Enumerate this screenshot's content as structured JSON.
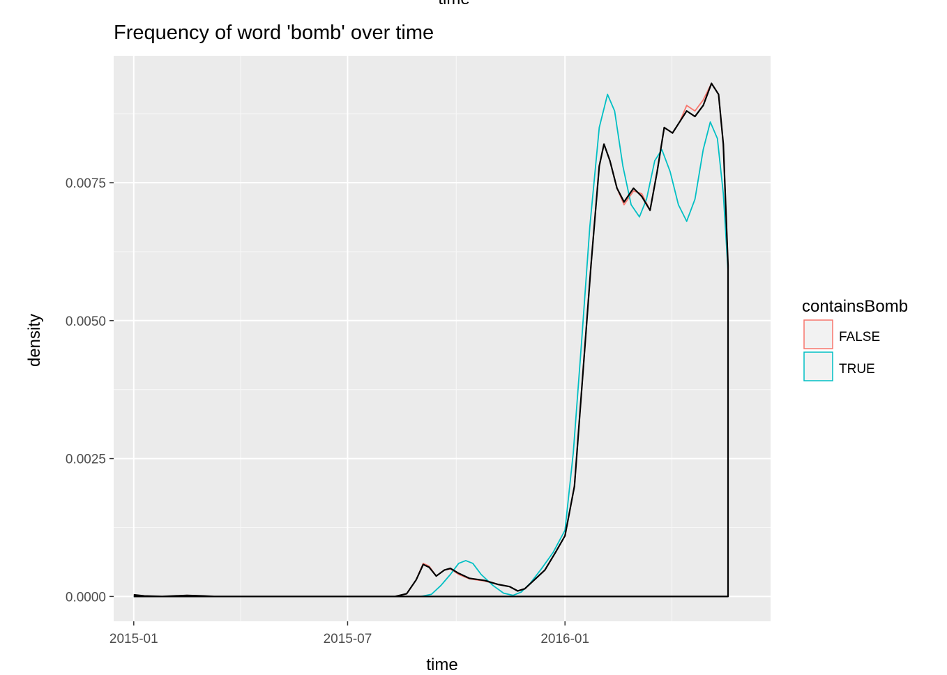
{
  "chart_data": {
    "type": "line",
    "top_title": "time",
    "title": "Frequency of word 'bomb' over time",
    "xlabel": "time",
    "ylabel": "density",
    "x_ticks": [
      "2015-01",
      "2015-07",
      "2016-01"
    ],
    "y_ticks": [
      "0.0000",
      "0.0025",
      "0.0050",
      "0.0075"
    ],
    "y_tick_values": [
      0,
      0.0025,
      0.005,
      0.0075
    ],
    "x_tick_values": [
      "2015-01-01",
      "2015-07-01",
      "2016-01-01"
    ],
    "xlim": [
      "2014-12-15",
      "2016-06-23"
    ],
    "ylim": [
      -0.00045,
      0.0098
    ],
    "grid": true,
    "legend": {
      "title": "containsBomb",
      "placement": "right",
      "entries": [
        {
          "label": "FALSE",
          "color": "#F8766D"
        },
        {
          "label": "TRUE",
          "color": "#00BFC4"
        }
      ]
    },
    "series": [
      {
        "name": "FALSE",
        "color": "#F8766D",
        "points": [
          [
            "2015-01-01",
            3e-05
          ],
          [
            "2015-01-10",
            1e-05
          ],
          [
            "2015-01-25",
            0.0
          ],
          [
            "2015-02-15",
            2e-05
          ],
          [
            "2015-03-01",
            1e-05
          ],
          [
            "2015-03-10",
            0.0
          ],
          [
            "2015-08-10",
            0.0
          ],
          [
            "2015-08-20",
            5e-05
          ],
          [
            "2015-08-28",
            0.0003
          ],
          [
            "2015-09-03",
            0.0006
          ],
          [
            "2015-09-08",
            0.00055
          ],
          [
            "2015-09-14",
            0.00037
          ],
          [
            "2015-09-21",
            0.00048
          ],
          [
            "2015-09-26",
            0.0005
          ],
          [
            "2015-10-03",
            0.0004
          ],
          [
            "2015-10-12",
            0.00032
          ],
          [
            "2015-10-25",
            0.00028
          ],
          [
            "2015-11-05",
            0.00022
          ],
          [
            "2015-11-15",
            0.00018
          ],
          [
            "2015-11-22",
            0.0001
          ],
          [
            "2015-11-28",
            0.00014
          ],
          [
            "2015-12-06",
            0.0003
          ],
          [
            "2015-12-15",
            0.00048
          ],
          [
            "2015-12-24",
            0.0008
          ],
          [
            "2016-01-01",
            0.0011
          ],
          [
            "2016-01-09",
            0.002
          ],
          [
            "2016-01-16",
            0.004
          ],
          [
            "2016-01-23",
            0.006
          ],
          [
            "2016-01-30",
            0.0078
          ],
          [
            "2016-02-03",
            0.0082
          ],
          [
            "2016-02-08",
            0.0079
          ],
          [
            "2016-02-14",
            0.0074
          ],
          [
            "2016-02-20",
            0.0071
          ],
          [
            "2016-02-28",
            0.00735
          ],
          [
            "2016-03-06",
            0.0073
          ],
          [
            "2016-03-13",
            0.007
          ],
          [
            "2016-03-19",
            0.0077
          ],
          [
            "2016-03-25",
            0.0085
          ],
          [
            "2016-04-01",
            0.0084
          ],
          [
            "2016-04-07",
            0.0086
          ],
          [
            "2016-04-13",
            0.0089
          ],
          [
            "2016-04-20",
            0.0088
          ],
          [
            "2016-04-27",
            0.009
          ],
          [
            "2016-05-04",
            0.0093
          ],
          [
            "2016-05-10",
            0.0091
          ],
          [
            "2016-05-14",
            0.0082
          ],
          [
            "2016-05-18",
            0.006
          ]
        ]
      },
      {
        "name": "TRUE",
        "color": "#00BFC4",
        "points": [
          [
            "2015-01-01",
            0.0
          ],
          [
            "2015-09-01",
            0.0
          ],
          [
            "2015-09-10",
            4e-05
          ],
          [
            "2015-09-18",
            0.0002
          ],
          [
            "2015-09-26",
            0.0004
          ],
          [
            "2015-10-03",
            0.0006
          ],
          [
            "2015-10-09",
            0.00065
          ],
          [
            "2015-10-15",
            0.0006
          ],
          [
            "2015-10-22",
            0.0004
          ],
          [
            "2015-11-01",
            0.0002
          ],
          [
            "2015-11-10",
            6e-05
          ],
          [
            "2015-11-18",
            2e-05
          ],
          [
            "2015-11-25",
            8e-05
          ],
          [
            "2015-12-03",
            0.00025
          ],
          [
            "2015-12-12",
            0.0005
          ],
          [
            "2015-12-22",
            0.0008
          ],
          [
            "2016-01-01",
            0.0012
          ],
          [
            "2016-01-08",
            0.0026
          ],
          [
            "2016-01-15",
            0.0046
          ],
          [
            "2016-01-22",
            0.0067
          ],
          [
            "2016-01-30",
            0.0085
          ],
          [
            "2016-02-06",
            0.0091
          ],
          [
            "2016-02-12",
            0.0088
          ],
          [
            "2016-02-19",
            0.0078
          ],
          [
            "2016-02-26",
            0.0071
          ],
          [
            "2016-03-04",
            0.00688
          ],
          [
            "2016-03-10",
            0.0072
          ],
          [
            "2016-03-17",
            0.0079
          ],
          [
            "2016-03-23",
            0.0081
          ],
          [
            "2016-03-30",
            0.0077
          ],
          [
            "2016-04-06",
            0.0071
          ],
          [
            "2016-04-13",
            0.0068
          ],
          [
            "2016-04-20",
            0.0072
          ],
          [
            "2016-04-27",
            0.0081
          ],
          [
            "2016-05-03",
            0.0086
          ],
          [
            "2016-05-09",
            0.0083
          ],
          [
            "2016-05-14",
            0.0073
          ],
          [
            "2016-05-18",
            0.0059
          ]
        ]
      },
      {
        "name": "",
        "color": "#000000",
        "closed_at_end": true,
        "points": [
          [
            "2015-01-01",
            3e-05
          ],
          [
            "2015-01-10",
            1e-05
          ],
          [
            "2015-01-25",
            0.0
          ],
          [
            "2015-02-15",
            2e-05
          ],
          [
            "2015-03-01",
            1e-05
          ],
          [
            "2015-03-10",
            0.0
          ],
          [
            "2015-08-10",
            0.0
          ],
          [
            "2015-08-20",
            5e-05
          ],
          [
            "2015-08-28",
            0.0003
          ],
          [
            "2015-09-03",
            0.00058
          ],
          [
            "2015-09-08",
            0.00053
          ],
          [
            "2015-09-14",
            0.00037
          ],
          [
            "2015-09-21",
            0.00048
          ],
          [
            "2015-09-26",
            0.00051
          ],
          [
            "2015-10-03",
            0.00042
          ],
          [
            "2015-10-12",
            0.00033
          ],
          [
            "2015-10-25",
            0.00029
          ],
          [
            "2015-11-05",
            0.00022
          ],
          [
            "2015-11-15",
            0.00018
          ],
          [
            "2015-11-22",
            0.0001
          ],
          [
            "2015-11-28",
            0.00014
          ],
          [
            "2015-12-06",
            0.0003
          ],
          [
            "2015-12-15",
            0.00048
          ],
          [
            "2015-12-24",
            0.0008
          ],
          [
            "2016-01-01",
            0.0011
          ],
          [
            "2016-01-09",
            0.002
          ],
          [
            "2016-01-16",
            0.004
          ],
          [
            "2016-01-23",
            0.006
          ],
          [
            "2016-01-30",
            0.0078
          ],
          [
            "2016-02-03",
            0.0082
          ],
          [
            "2016-02-08",
            0.0079
          ],
          [
            "2016-02-14",
            0.0074
          ],
          [
            "2016-02-20",
            0.00715
          ],
          [
            "2016-02-28",
            0.0074
          ],
          [
            "2016-03-06",
            0.00725
          ],
          [
            "2016-03-13",
            0.007
          ],
          [
            "2016-03-19",
            0.0077
          ],
          [
            "2016-03-25",
            0.0085
          ],
          [
            "2016-04-01",
            0.0084
          ],
          [
            "2016-04-07",
            0.0086
          ],
          [
            "2016-04-13",
            0.0088
          ],
          [
            "2016-04-20",
            0.0087
          ],
          [
            "2016-04-27",
            0.0089
          ],
          [
            "2016-05-04",
            0.0093
          ],
          [
            "2016-05-10",
            0.0091
          ],
          [
            "2016-05-14",
            0.0082
          ],
          [
            "2016-05-18",
            0.006
          ]
        ]
      }
    ]
  }
}
